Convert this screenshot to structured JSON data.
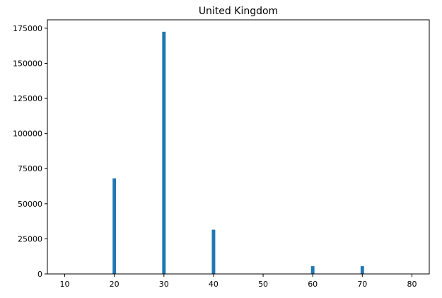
{
  "chart_data": {
    "type": "bar",
    "title": "United Kingdom",
    "xlabel": "",
    "ylabel": "",
    "xlim": [
      6.5,
      83.5
    ],
    "ylim": [
      0,
      181000
    ],
    "x_ticks": [
      10,
      20,
      30,
      40,
      50,
      60,
      70,
      80
    ],
    "y_ticks": [
      0,
      25000,
      50000,
      75000,
      100000,
      125000,
      150000,
      175000
    ],
    "bar_width": 0.7,
    "bars": [
      {
        "x": 20,
        "value": 68000
      },
      {
        "x": 30,
        "value": 172500
      },
      {
        "x": 40,
        "value": 31500
      },
      {
        "x": 60,
        "value": 5500
      },
      {
        "x": 70,
        "value": 5500
      }
    ],
    "grid": false,
    "bar_color": "#1f77b4"
  }
}
